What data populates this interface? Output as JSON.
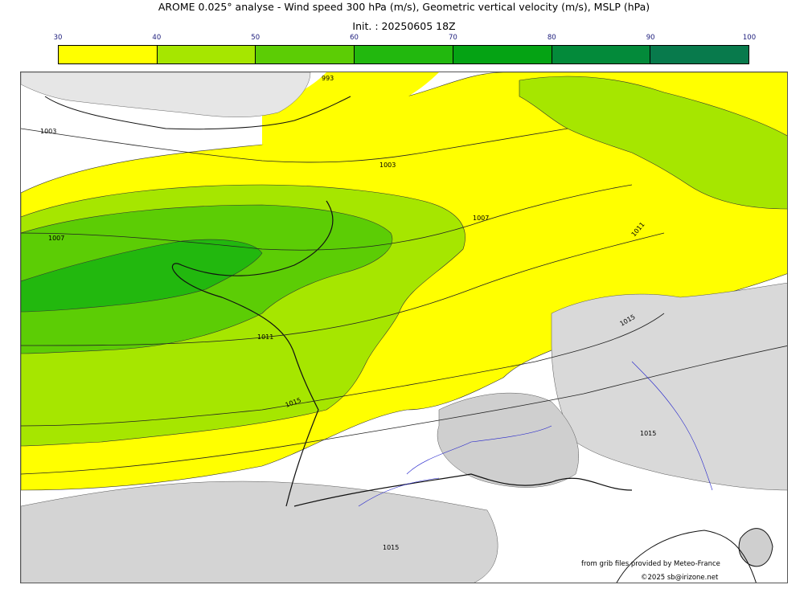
{
  "title": "AROME 0.025° analyse - Wind speed 300 hPa (m/s), Geometric vertical velocity (m/s), MSLP (hPa)",
  "init": "Init. : 20250605 18Z",
  "colorbar": {
    "ticks": [
      "30",
      "40",
      "50",
      "60",
      "70",
      "80",
      "90",
      "100"
    ],
    "colors": [
      "#ffff00",
      "#a6e600",
      "#5ccd05",
      "#22b80e",
      "#05a314",
      "#038a3a",
      "#087a4c"
    ]
  },
  "isobar_labels": [
    "993",
    "1003",
    "1003",
    "1007",
    "1007",
    "1011",
    "1011",
    "1015",
    "1015",
    "1015",
    "1015",
    "1015"
  ],
  "credits": {
    "line1": "from grib files provided by Meteo-France",
    "line2": "©2025 sb@irizone.net"
  }
}
